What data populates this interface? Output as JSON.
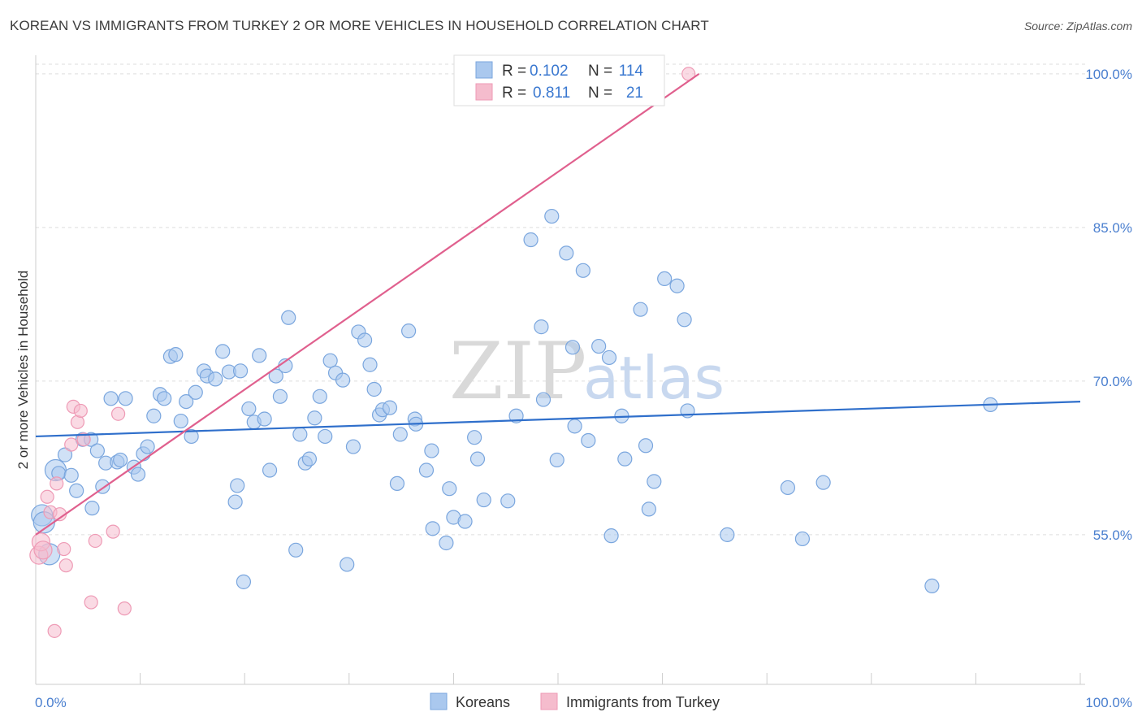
{
  "title": "KOREAN VS IMMIGRANTS FROM TURKEY 2 OR MORE VEHICLES IN HOUSEHOLD CORRELATION CHART",
  "source": "Source: ZipAtlas.com",
  "watermark": {
    "zip": "ZIP",
    "atlas": "atlas"
  },
  "colors": {
    "blue_fill": "#aac8ee",
    "blue_stroke": "#7aa6de",
    "blue_line": "#2f6fcb",
    "pink_fill": "#f5bccd",
    "pink_stroke": "#ee9ab5",
    "pink_line": "#e0608e",
    "grid": "#dddddd",
    "axis_text": "#4a7fcf"
  },
  "legend": {
    "rows": [
      {
        "r_label": "R =",
        "r_value": "0.102",
        "n_label": "N =",
        "n_value": "114"
      },
      {
        "r_label": "R =",
        "r_value": "0.811",
        "n_label": "N =",
        "n_value": "21"
      }
    ]
  },
  "bottom_legend": {
    "series1": "Koreans",
    "series2": "Immigrants from Turkey"
  },
  "chart_data": {
    "type": "scatter",
    "title": "KOREAN VS IMMIGRANTS FROM TURKEY 2 OR MORE VEHICLES IN HOUSEHOLD CORRELATION CHART",
    "xlabel": "",
    "ylabel": "2 or more Vehicles in Household",
    "xlim": [
      0,
      100
    ],
    "ylim": [
      40,
      100
    ],
    "x_tick_labels": {
      "left": "0.0%",
      "right": "100.0%"
    },
    "y_ticks": [
      {
        "value": 55,
        "label": "55.0%"
      },
      {
        "value": 70,
        "label": "70.0%"
      },
      {
        "value": 85,
        "label": "85.0%"
      },
      {
        "value": 100,
        "label": "100.0%"
      }
    ],
    "series": [
      {
        "name": "Koreans",
        "R": 0.102,
        "N": 114,
        "trend": {
          "x1": 0,
          "y1": 64.6,
          "x2": 100,
          "y2": 68.0
        },
        "points": [
          [
            0.6,
            56.9
          ],
          [
            0.8,
            56.2
          ],
          [
            1.3,
            53.1
          ],
          [
            1.9,
            61.3
          ],
          [
            2.2,
            61.0
          ],
          [
            2.8,
            62.8
          ],
          [
            3.4,
            60.8
          ],
          [
            3.9,
            59.3
          ],
          [
            4.5,
            64.3
          ],
          [
            5.3,
            64.3
          ],
          [
            5.4,
            57.6
          ],
          [
            5.9,
            63.2
          ],
          [
            6.4,
            59.7
          ],
          [
            6.7,
            62.0
          ],
          [
            7.2,
            68.3
          ],
          [
            7.8,
            62.1
          ],
          [
            8.1,
            62.3
          ],
          [
            8.6,
            68.3
          ],
          [
            9.4,
            61.6
          ],
          [
            9.8,
            60.9
          ],
          [
            10.3,
            62.9
          ],
          [
            10.7,
            63.6
          ],
          [
            11.3,
            66.6
          ],
          [
            11.9,
            68.7
          ],
          [
            12.3,
            68.3
          ],
          [
            12.9,
            72.4
          ],
          [
            13.4,
            72.6
          ],
          [
            13.9,
            66.1
          ],
          [
            14.4,
            68.0
          ],
          [
            14.9,
            64.6
          ],
          [
            15.3,
            68.9
          ],
          [
            16.1,
            71.0
          ],
          [
            16.4,
            70.5
          ],
          [
            17.2,
            70.2
          ],
          [
            17.9,
            72.9
          ],
          [
            18.5,
            70.9
          ],
          [
            19.1,
            58.2
          ],
          [
            19.3,
            59.8
          ],
          [
            19.6,
            71.0
          ],
          [
            19.9,
            50.4
          ],
          [
            20.4,
            67.3
          ],
          [
            20.9,
            66.0
          ],
          [
            21.4,
            72.5
          ],
          [
            21.9,
            66.3
          ],
          [
            22.4,
            61.3
          ],
          [
            23.0,
            70.5
          ],
          [
            23.4,
            68.5
          ],
          [
            23.9,
            71.5
          ],
          [
            24.2,
            76.2
          ],
          [
            24.9,
            53.5
          ],
          [
            25.3,
            64.8
          ],
          [
            25.8,
            62.0
          ],
          [
            26.2,
            62.4
          ],
          [
            26.7,
            66.4
          ],
          [
            27.2,
            68.5
          ],
          [
            27.7,
            64.6
          ],
          [
            28.2,
            72.0
          ],
          [
            28.7,
            70.8
          ],
          [
            29.4,
            70.1
          ],
          [
            29.8,
            52.1
          ],
          [
            30.4,
            63.6
          ],
          [
            30.9,
            74.8
          ],
          [
            31.5,
            74.0
          ],
          [
            32.0,
            71.6
          ],
          [
            32.4,
            69.2
          ],
          [
            32.9,
            66.7
          ],
          [
            33.2,
            67.2
          ],
          [
            33.9,
            67.4
          ],
          [
            34.6,
            60.0
          ],
          [
            34.9,
            64.8
          ],
          [
            35.7,
            74.9
          ],
          [
            36.3,
            66.3
          ],
          [
            36.4,
            65.8
          ],
          [
            37.4,
            61.3
          ],
          [
            37.9,
            63.2
          ],
          [
            38.0,
            55.6
          ],
          [
            39.3,
            54.2
          ],
          [
            39.6,
            59.5
          ],
          [
            40.0,
            56.7
          ],
          [
            41.1,
            56.3
          ],
          [
            42.0,
            64.5
          ],
          [
            42.3,
            62.4
          ],
          [
            42.9,
            58.4
          ],
          [
            45.2,
            58.3
          ],
          [
            46.0,
            66.6
          ],
          [
            47.4,
            83.8
          ],
          [
            48.4,
            75.3
          ],
          [
            48.6,
            68.2
          ],
          [
            49.4,
            86.1
          ],
          [
            49.9,
            62.3
          ],
          [
            50.8,
            82.5
          ],
          [
            51.4,
            73.3
          ],
          [
            51.6,
            65.6
          ],
          [
            52.4,
            80.8
          ],
          [
            52.9,
            64.2
          ],
          [
            53.9,
            73.4
          ],
          [
            54.9,
            72.3
          ],
          [
            55.1,
            54.9
          ],
          [
            56.1,
            66.6
          ],
          [
            56.4,
            62.4
          ],
          [
            57.9,
            77.0
          ],
          [
            58.4,
            63.7
          ],
          [
            58.7,
            57.5
          ],
          [
            59.2,
            60.2
          ],
          [
            60.2,
            80.0
          ],
          [
            61.4,
            79.3
          ],
          [
            62.1,
            76.0
          ],
          [
            62.4,
            67.1
          ],
          [
            66.2,
            55.0
          ],
          [
            72.0,
            59.6
          ],
          [
            73.4,
            54.6
          ],
          [
            75.4,
            60.1
          ],
          [
            85.8,
            50.0
          ],
          [
            91.4,
            67.7
          ]
        ]
      },
      {
        "name": "Immigrants from Turkey",
        "R": 0.811,
        "N": 21,
        "trend": {
          "x1": 0,
          "y1": 55.0,
          "x2": 63.5,
          "y2": 100.0
        },
        "points": [
          [
            0.3,
            53.0
          ],
          [
            0.5,
            54.3
          ],
          [
            0.7,
            53.5
          ],
          [
            1.1,
            58.7
          ],
          [
            1.4,
            57.2
          ],
          [
            1.8,
            45.6
          ],
          [
            2.0,
            60.0
          ],
          [
            2.3,
            57.0
          ],
          [
            2.7,
            53.6
          ],
          [
            2.9,
            52.0
          ],
          [
            3.4,
            63.8
          ],
          [
            3.6,
            67.5
          ],
          [
            4.0,
            66.0
          ],
          [
            4.3,
            67.1
          ],
          [
            4.6,
            64.3
          ],
          [
            5.3,
            48.4
          ],
          [
            5.7,
            54.4
          ],
          [
            7.4,
            55.3
          ],
          [
            7.9,
            66.8
          ],
          [
            8.5,
            47.8
          ],
          [
            62.5,
            100.0
          ]
        ]
      }
    ]
  }
}
